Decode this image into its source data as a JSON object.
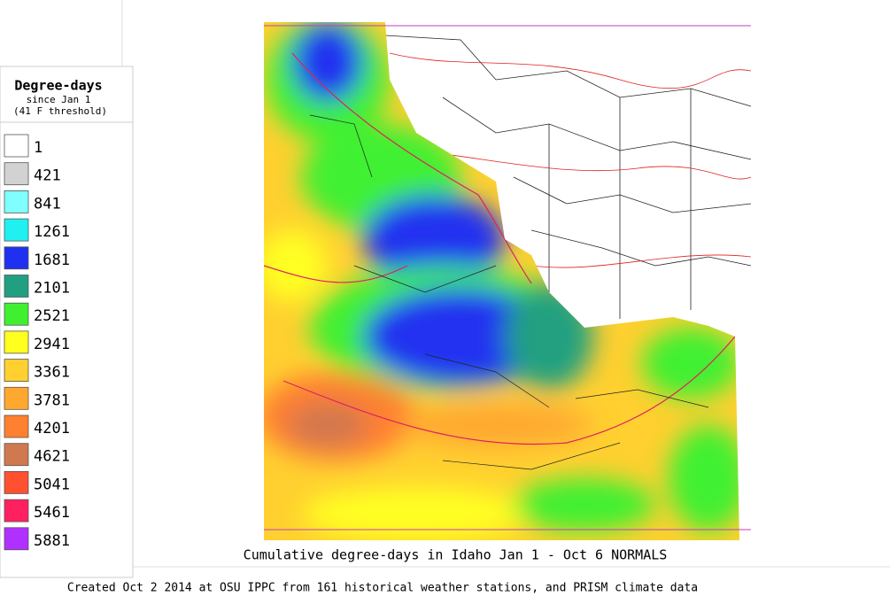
{
  "legend": {
    "title": "Degree-days",
    "subtitle": "since Jan 1",
    "note": "(41 F threshold)",
    "items": [
      {
        "label": 1,
        "color": "#ffffff"
      },
      {
        "label": 421,
        "color": "#d2d2d2"
      },
      {
        "label": 841,
        "color": "#80ffff"
      },
      {
        "label": 1261,
        "color": "#20f0f0"
      },
      {
        "label": 1681,
        "color": "#2030f0"
      },
      {
        "label": 2101,
        "color": "#20a080"
      },
      {
        "label": 2521,
        "color": "#40f030"
      },
      {
        "label": 2941,
        "color": "#ffff20"
      },
      {
        "label": 3361,
        "color": "#ffd030"
      },
      {
        "label": 3781,
        "color": "#ffa830"
      },
      {
        "label": 4201,
        "color": "#ff8030"
      },
      {
        "label": 4621,
        "color": "#d07850"
      },
      {
        "label": 5041,
        "color": "#ff5030"
      },
      {
        "label": 5461,
        "color": "#ff2060"
      },
      {
        "label": 5881,
        "color": "#b030ff"
      }
    ]
  },
  "map": {
    "caption": "Cumulative degree-days in Idaho  Jan 1 - Oct 6 NORMALS"
  },
  "footer": {
    "text": "Created Oct 2 2014 at OSU IPPC from 161 historical weather stations, and PRISM climate data"
  }
}
